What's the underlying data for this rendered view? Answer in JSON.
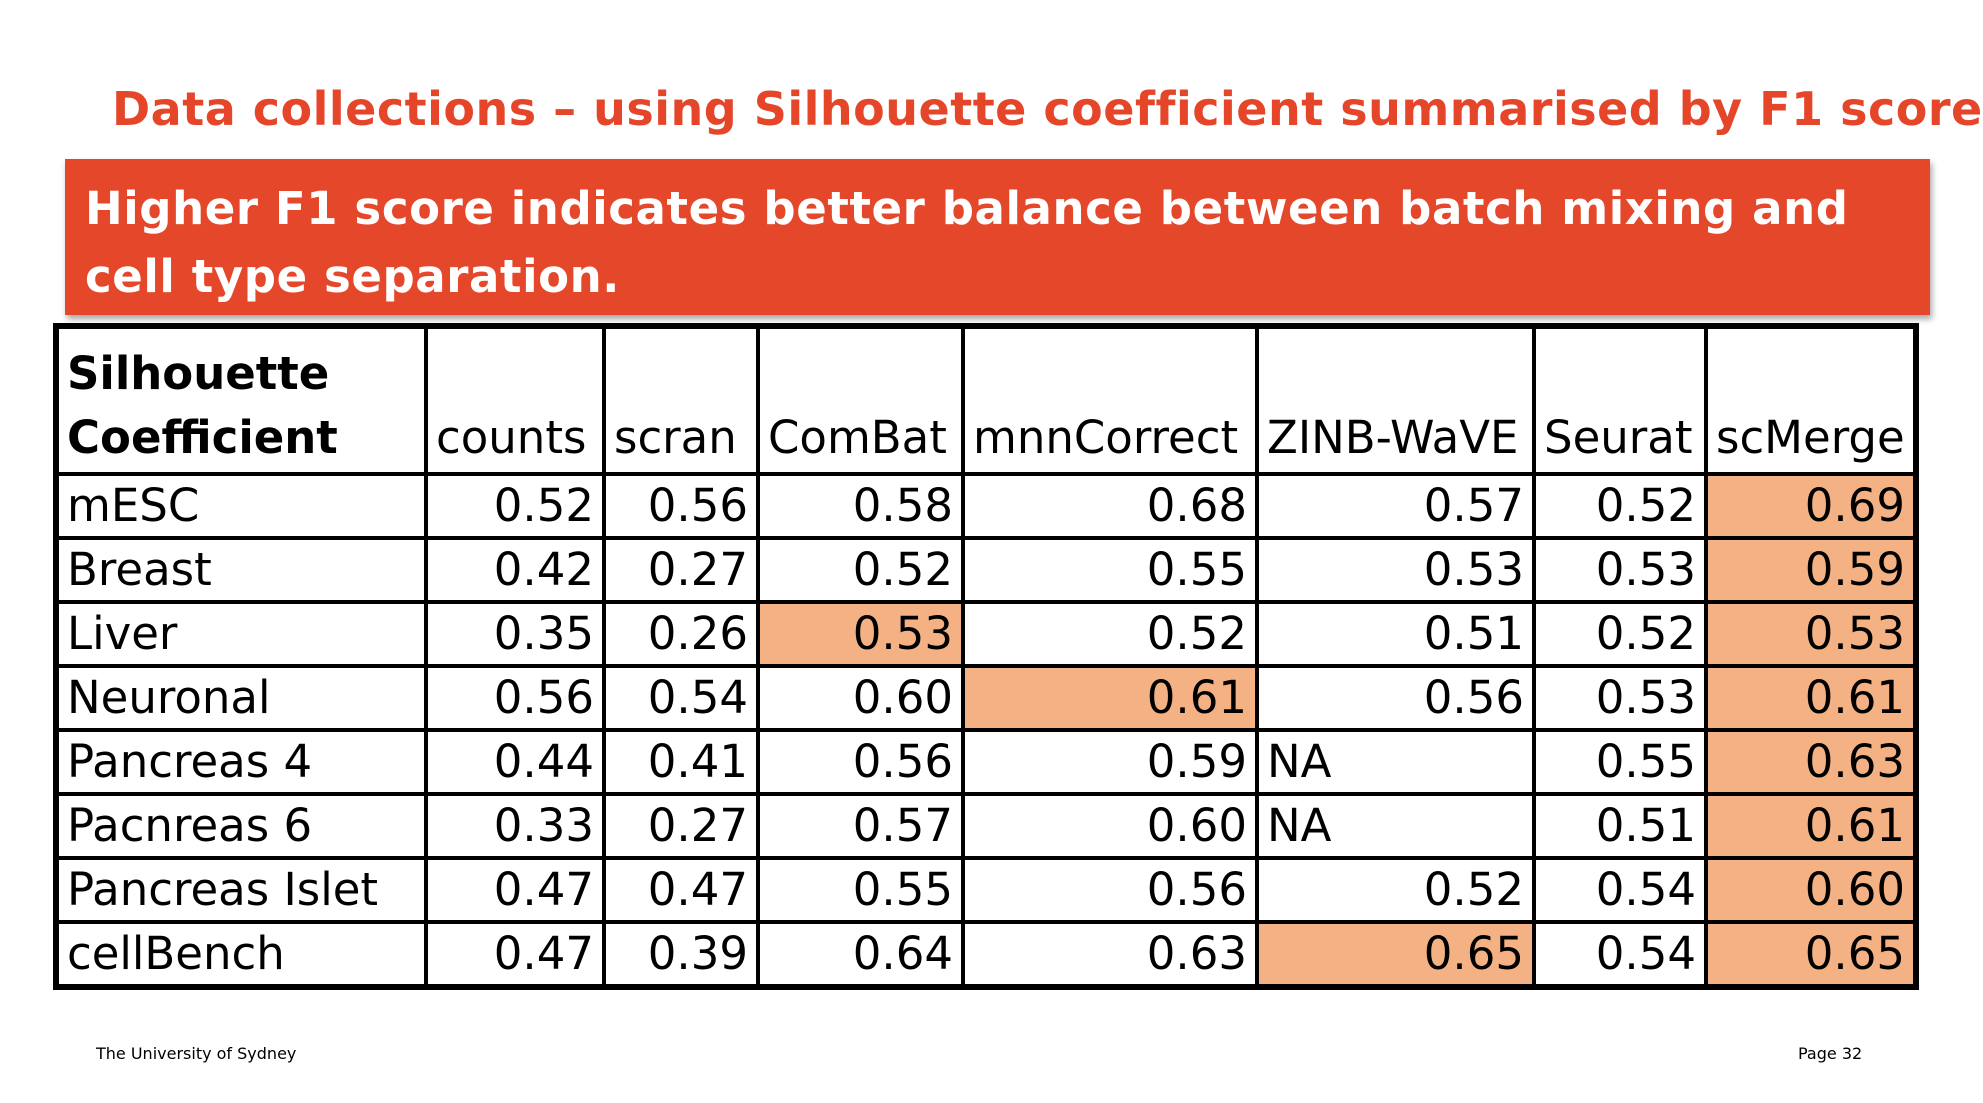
{
  "slide": {
    "title": "Data collections – using Silhouette coefficient summarised by F1 score",
    "banner_text": "Higher F1 score indicates better balance between batch mixing and cell type separation.",
    "footer_left": "The University of Sydney",
    "footer_right": "Page 32"
  },
  "colors": {
    "title": "#e5462a",
    "banner_bg": "#e4472a",
    "banner_text": "#ffffff",
    "highlight": "#f4b183"
  },
  "table": {
    "corner_label_line1": "Silhouette",
    "corner_label_line2": "Coefficient",
    "columns": [
      "counts",
      "scran",
      "ComBat",
      "mnnCorrect",
      "ZINB-WaVE",
      "Seurat",
      "scMerge"
    ],
    "rows": [
      {
        "label": "mESC",
        "values": [
          "0.52",
          "0.56",
          "0.58",
          "0.68",
          "0.57",
          "0.52",
          "0.69"
        ],
        "highlight": [
          6
        ]
      },
      {
        "label": "Breast",
        "values": [
          "0.42",
          "0.27",
          "0.52",
          "0.55",
          "0.53",
          "0.53",
          "0.59"
        ],
        "highlight": [
          6
        ]
      },
      {
        "label": "Liver",
        "values": [
          "0.35",
          "0.26",
          "0.53",
          "0.52",
          "0.51",
          "0.52",
          "0.53"
        ],
        "highlight": [
          2,
          6
        ]
      },
      {
        "label": "Neuronal",
        "values": [
          "0.56",
          "0.54",
          "0.60",
          "0.61",
          "0.56",
          "0.53",
          "0.61"
        ],
        "highlight": [
          3,
          6
        ]
      },
      {
        "label": "Pancreas 4",
        "values": [
          "0.44",
          "0.41",
          "0.56",
          "0.59",
          "NA",
          "0.55",
          "0.63"
        ],
        "highlight": [
          6
        ]
      },
      {
        "label": "Pacnreas 6",
        "values": [
          "0.33",
          "0.27",
          "0.57",
          "0.60",
          "NA",
          "0.51",
          "0.61"
        ],
        "highlight": [
          6
        ]
      },
      {
        "label": "Pancreas Islet",
        "values": [
          "0.47",
          "0.47",
          "0.55",
          "0.56",
          "0.52",
          "0.54",
          "0.60"
        ],
        "highlight": [
          6
        ]
      },
      {
        "label": "cellBench",
        "values": [
          "0.47",
          "0.39",
          "0.64",
          "0.63",
          "0.65",
          "0.54",
          "0.65"
        ],
        "highlight": [
          4,
          6
        ]
      }
    ]
  }
}
